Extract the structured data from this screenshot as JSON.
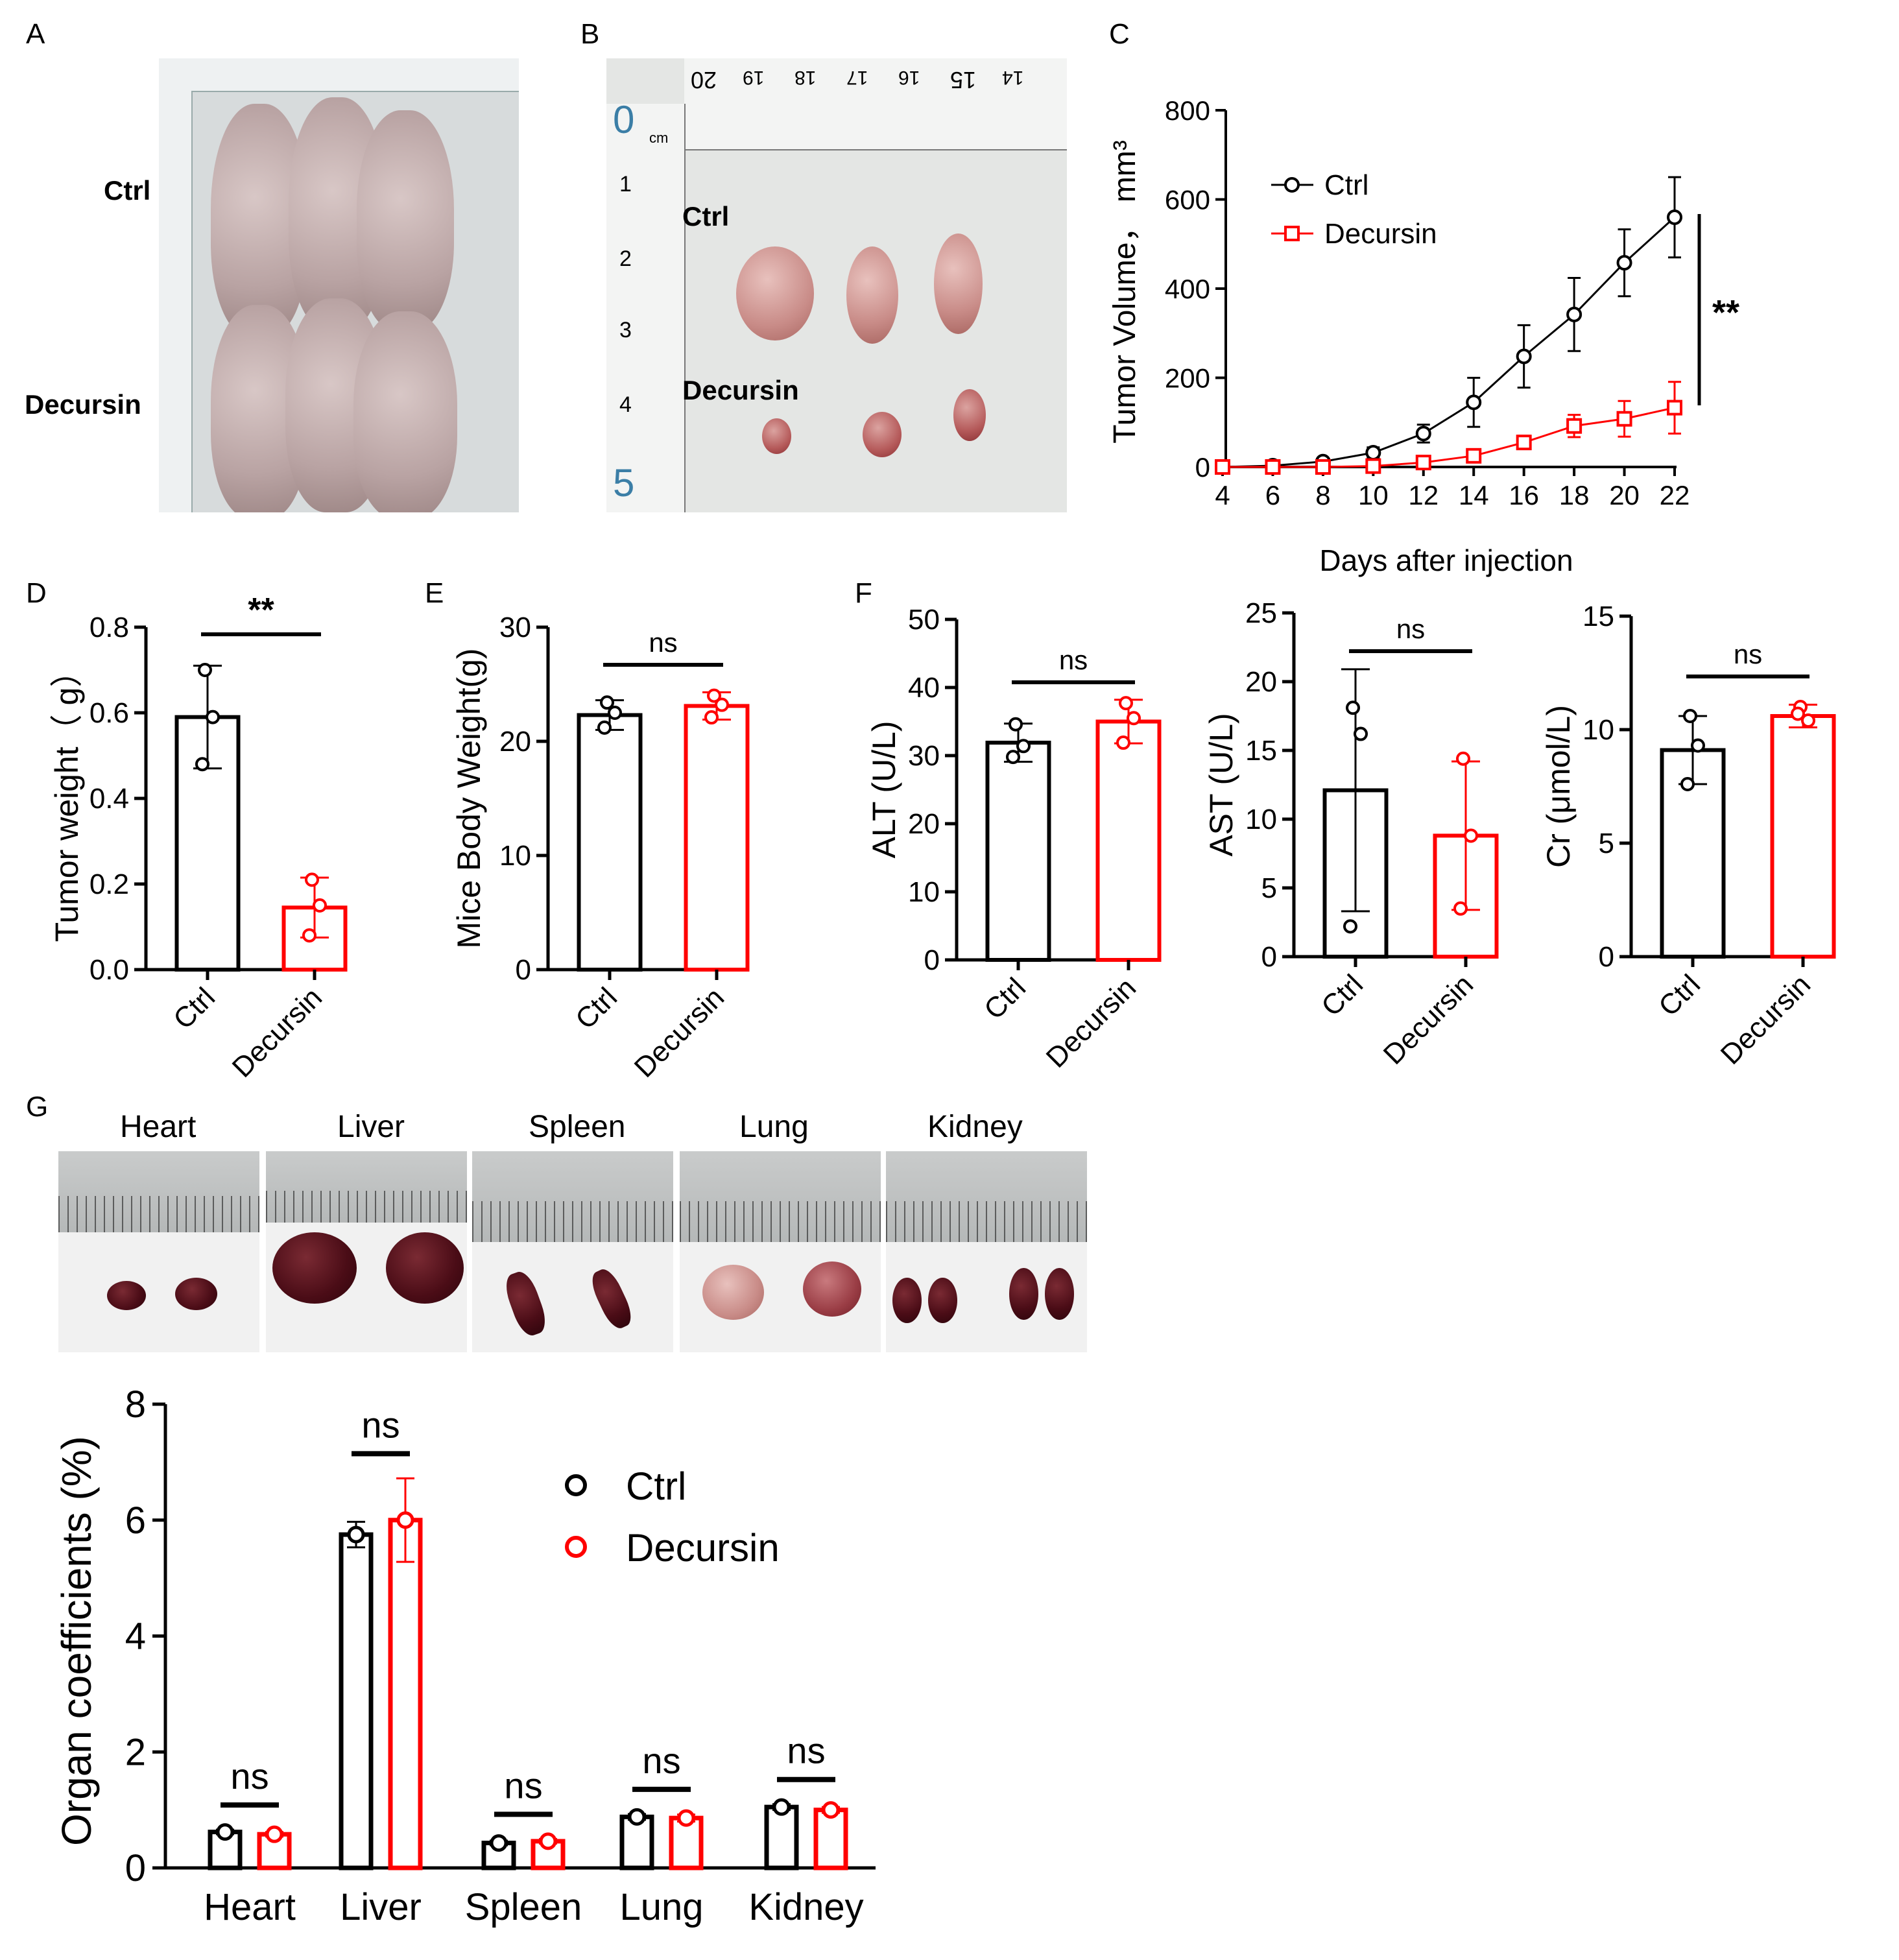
{
  "panels": {
    "A": {
      "letter": "A",
      "labels": {
        "top": "Ctrl",
        "bottom": "Decursin"
      }
    },
    "B": {
      "letter": "B",
      "labels": {
        "top": "Ctrl",
        "bottom": "Decursin"
      },
      "ruler_top": [
        "20",
        "19",
        "18",
        "17",
        "16",
        "15",
        "14"
      ],
      "ruler_side": [
        "0",
        "1",
        "2",
        "3",
        "4",
        "5"
      ],
      "ruler_unit": "cm"
    },
    "C": {
      "letter": "C"
    },
    "D": {
      "letter": "D"
    },
    "E": {
      "letter": "E"
    },
    "F": {
      "letter": "F"
    },
    "G": {
      "letter": "G",
      "organ_titles": [
        "Heart",
        "Liver",
        "Spleen",
        "Lung",
        "Kidney"
      ]
    }
  },
  "colors": {
    "ctrl": "#000000",
    "decursin": "#ff0000"
  },
  "chart_data": [
    {
      "id": "C",
      "type": "line",
      "xlabel": "Days after injection",
      "ylabel": "Tumor Volume， mm³",
      "x": [
        4,
        6,
        8,
        10,
        12,
        14,
        16,
        18,
        20,
        22
      ],
      "xlim": [
        4,
        22
      ],
      "ylim": [
        0,
        800
      ],
      "yticks": [
        0,
        200,
        400,
        600,
        800
      ],
      "series": [
        {
          "name": "Ctrl",
          "color": "#000000",
          "marker": "circle",
          "values": [
            0,
            3,
            12,
            32,
            75,
            145,
            248,
            342,
            458,
            560
          ],
          "errors": [
            0,
            3,
            6,
            12,
            20,
            55,
            70,
            82,
            75,
            90
          ]
        },
        {
          "name": "Decursin",
          "color": "#ff0000",
          "marker": "square",
          "values": [
            0,
            0,
            0,
            2,
            10,
            25,
            55,
            92,
            108,
            133
          ],
          "errors": [
            0,
            0,
            0,
            2,
            5,
            10,
            15,
            25,
            40,
            58
          ]
        }
      ],
      "legend": "top-left",
      "significance": "**"
    },
    {
      "id": "D",
      "type": "bar",
      "ylabel": "Tumor weight（ g）",
      "categories": [
        "Ctrl",
        "Decursin"
      ],
      "values": [
        0.59,
        0.145
      ],
      "errors": [
        0.12,
        0.07
      ],
      "points": [
        [
          0.7,
          0.59,
          0.48
        ],
        [
          0.21,
          0.15,
          0.08
        ]
      ],
      "ylim": [
        0,
        0.8
      ],
      "yticks": [
        "0.0",
        "0.2",
        "0.4",
        "0.6",
        "0.8"
      ],
      "significance": "**"
    },
    {
      "id": "E",
      "type": "bar",
      "ylabel": "Mice Body Weight(g)",
      "categories": [
        "Ctrl",
        "Decursin"
      ],
      "values": [
        22.3,
        23.1
      ],
      "errors": [
        1.3,
        1.2
      ],
      "points": [
        [
          23.4,
          22.5,
          21.2
        ],
        [
          24.0,
          23.2,
          22.1
        ]
      ],
      "ylim": [
        0,
        30
      ],
      "yticks": [
        "0",
        "10",
        "20",
        "30"
      ],
      "significance": "ns"
    },
    {
      "id": "F1",
      "type": "bar",
      "ylabel": "ALT (U/L)",
      "categories": [
        "Ctrl",
        "Decursin"
      ],
      "values": [
        31.9,
        35.0
      ],
      "errors": [
        2.8,
        3.2
      ],
      "points": [
        [
          34.6,
          31.4,
          29.8
        ],
        [
          37.7,
          35.5,
          31.9
        ]
      ],
      "ylim": [
        0,
        50
      ],
      "yticks": [
        "0",
        "10",
        "20",
        "30",
        "40",
        "50"
      ],
      "significance": "ns"
    },
    {
      "id": "F2",
      "type": "bar",
      "ylabel": "AST (U/L)",
      "categories": [
        "Ctrl",
        "Decursin"
      ],
      "values": [
        12.1,
        8.8
      ],
      "errors": [
        8.8,
        5.4
      ],
      "points": [
        [
          18.1,
          16.2,
          2.2
        ],
        [
          14.4,
          8.8,
          3.5
        ]
      ],
      "ylim": [
        0,
        25
      ],
      "yticks": [
        "0",
        "5",
        "10",
        "15",
        "20",
        "25"
      ],
      "significance": "ns"
    },
    {
      "id": "F3",
      "type": "bar",
      "ylabel": "Cr (μmol/L)",
      "categories": [
        "Ctrl",
        "Decursin"
      ],
      "values": [
        9.1,
        10.6
      ],
      "errors": [
        1.5,
        0.5
      ],
      "points": [
        [
          10.6,
          9.3,
          7.6
        ],
        [
          11.0,
          10.4,
          10.7
        ]
      ],
      "ylim": [
        0,
        15
      ],
      "yticks": [
        "0",
        "5",
        "10",
        "15"
      ],
      "significance": "ns"
    },
    {
      "id": "G",
      "type": "bar",
      "ylabel": "Organ coefficients (%)",
      "categories": [
        "Heart",
        "Liver",
        "Spleen",
        "Lung",
        "Kidney"
      ],
      "series": [
        {
          "name": "Ctrl",
          "color": "#000000",
          "values": [
            0.62,
            5.75,
            0.43,
            0.88,
            1.05
          ],
          "errors": [
            0.04,
            0.22,
            0.04,
            0.05,
            0.05
          ]
        },
        {
          "name": "Decursin",
          "color": "#ff0000",
          "values": [
            0.58,
            6.0,
            0.46,
            0.86,
            1.0
          ],
          "errors": [
            0.04,
            0.72,
            0.04,
            0.06,
            0.05
          ]
        }
      ],
      "ylim": [
        0,
        8
      ],
      "yticks": [
        "0",
        "2",
        "4",
        "6",
        "8"
      ],
      "significance": [
        "ns",
        "ns",
        "ns",
        "ns",
        "ns"
      ],
      "legend": "top-center"
    }
  ]
}
